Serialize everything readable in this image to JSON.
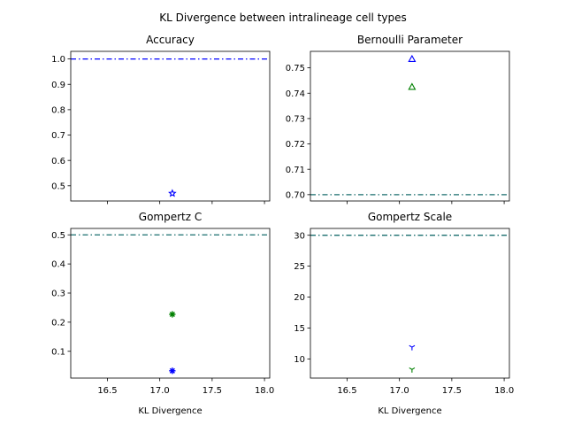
{
  "title": "KL Divergence between intralineage cell types",
  "colors": {
    "blue": "#0000ff",
    "green": "#008000",
    "teal": "#1a6e6e"
  },
  "chart_data": [
    {
      "type": "scatter",
      "title": "Accuracy",
      "xlabel": "",
      "ylabel": "",
      "xlim": [
        16.15,
        18.05
      ],
      "ylim": [
        0.44,
        1.03
      ],
      "xticks": [
        16.5,
        17.0,
        17.5,
        18.0
      ],
      "xtick_labels": [],
      "yticks": [
        0.5,
        0.6,
        0.7,
        0.8,
        0.9,
        1.0
      ],
      "ytick_labels": [
        "0.5",
        "0.6",
        "0.7",
        "0.8",
        "0.9",
        "1.0"
      ],
      "hlines": [
        {
          "y": 1.0,
          "color": "blue",
          "style": "dash-dot"
        }
      ],
      "points": [
        {
          "x": 17.12,
          "y": 0.47,
          "marker": "star",
          "color": "blue"
        }
      ]
    },
    {
      "type": "scatter",
      "title": "Bernoulli Parameter",
      "xlabel": "",
      "ylabel": "",
      "xlim": [
        16.15,
        18.05
      ],
      "ylim": [
        0.6975,
        0.7565
      ],
      "xticks": [
        16.5,
        17.0,
        17.5,
        18.0
      ],
      "xtick_labels": [],
      "yticks": [
        0.7,
        0.71,
        0.72,
        0.73,
        0.74,
        0.75
      ],
      "ytick_labels": [
        "0.70",
        "0.71",
        "0.72",
        "0.73",
        "0.74",
        "0.75"
      ],
      "hlines": [
        {
          "y": 0.7,
          "color": "teal",
          "style": "dash-dot"
        }
      ],
      "points": [
        {
          "x": 17.12,
          "y": 0.7535,
          "marker": "triangle",
          "color": "blue"
        },
        {
          "x": 17.12,
          "y": 0.7425,
          "marker": "triangle",
          "color": "green"
        }
      ]
    },
    {
      "type": "scatter",
      "title": "Gompertz C",
      "xlabel": "KL Divergence",
      "ylabel": "",
      "xlim": [
        16.15,
        18.05
      ],
      "ylim": [
        0.008,
        0.522
      ],
      "xticks": [
        16.5,
        17.0,
        17.5,
        18.0
      ],
      "xtick_labels": [
        "16.5",
        "17.0",
        "17.5",
        "18.0"
      ],
      "yticks": [
        0.1,
        0.2,
        0.3,
        0.4,
        0.5
      ],
      "ytick_labels": [
        "0.1",
        "0.2",
        "0.3",
        "0.4",
        "0.5"
      ],
      "hlines": [
        {
          "y": 0.5,
          "color": "teal",
          "style": "dash-dot"
        }
      ],
      "points": [
        {
          "x": 17.12,
          "y": 0.227,
          "marker": "asterisk",
          "color": "green"
        },
        {
          "x": 17.12,
          "y": 0.033,
          "marker": "asterisk",
          "color": "blue"
        }
      ]
    },
    {
      "type": "scatter",
      "title": "Gompertz Scale",
      "xlabel": "KL Divergence",
      "ylabel": "",
      "xlim": [
        16.15,
        18.05
      ],
      "ylim": [
        6.9,
        31.1
      ],
      "xticks": [
        16.5,
        17.0,
        17.5,
        18.0
      ],
      "xtick_labels": [
        "16.5",
        "17.0",
        "17.5",
        "18.0"
      ],
      "yticks": [
        10,
        15,
        20,
        25,
        30
      ],
      "ytick_labels": [
        "10",
        "15",
        "20",
        "25",
        "30"
      ],
      "hlines": [
        {
          "y": 30,
          "color": "teal",
          "style": "dash-dot"
        }
      ],
      "points": [
        {
          "x": 17.12,
          "y": 11.9,
          "marker": "tri",
          "color": "blue"
        },
        {
          "x": 17.12,
          "y": 8.3,
          "marker": "tri",
          "color": "green"
        }
      ]
    }
  ]
}
